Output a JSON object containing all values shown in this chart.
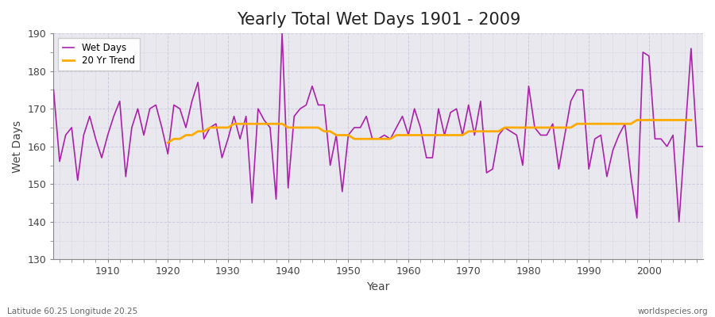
{
  "title": "Yearly Total Wet Days 1901 - 2009",
  "xlabel": "Year",
  "ylabel": "Wet Days",
  "bottom_left_label": "Latitude 60.25 Longitude 20.25",
  "bottom_right_label": "worldspecies.org",
  "xlim": [
    1901,
    2009
  ],
  "ylim": [
    130,
    190
  ],
  "yticks": [
    130,
    140,
    150,
    160,
    170,
    180,
    190
  ],
  "xticks": [
    1910,
    1920,
    1930,
    1940,
    1950,
    1960,
    1970,
    1980,
    1990,
    2000
  ],
  "line_color": "#aa22aa",
  "trend_color": "#ffaa00",
  "background_color": "#e8e8ee",
  "fig_background_color": "#ffffff",
  "grid_color": "#ccccdd",
  "legend_labels": [
    "Wet Days",
    "20 Yr Trend"
  ],
  "years": [
    1901,
    1902,
    1903,
    1904,
    1905,
    1906,
    1907,
    1908,
    1909,
    1910,
    1911,
    1912,
    1913,
    1914,
    1915,
    1916,
    1917,
    1918,
    1919,
    1920,
    1921,
    1922,
    1923,
    1924,
    1925,
    1926,
    1927,
    1928,
    1929,
    1930,
    1931,
    1932,
    1933,
    1934,
    1935,
    1936,
    1937,
    1938,
    1939,
    1940,
    1941,
    1942,
    1943,
    1944,
    1945,
    1946,
    1947,
    1948,
    1949,
    1950,
    1951,
    1952,
    1953,
    1954,
    1955,
    1956,
    1957,
    1958,
    1959,
    1960,
    1961,
    1962,
    1963,
    1964,
    1965,
    1966,
    1967,
    1968,
    1969,
    1970,
    1971,
    1972,
    1973,
    1974,
    1975,
    1976,
    1977,
    1978,
    1979,
    1980,
    1981,
    1982,
    1983,
    1984,
    1985,
    1986,
    1987,
    1988,
    1989,
    1990,
    1991,
    1992,
    1993,
    1994,
    1995,
    1996,
    1997,
    1998,
    1999,
    2000,
    2001,
    2002,
    2003,
    2004,
    2005,
    2006,
    2007,
    2008,
    2009
  ],
  "wet_days": [
    175,
    156,
    163,
    165,
    151,
    163,
    168,
    162,
    157,
    163,
    168,
    172,
    152,
    165,
    170,
    163,
    170,
    171,
    165,
    158,
    171,
    170,
    165,
    172,
    177,
    162,
    165,
    166,
    157,
    162,
    168,
    162,
    168,
    145,
    170,
    167,
    165,
    146,
    190,
    149,
    168,
    170,
    171,
    176,
    171,
    171,
    155,
    163,
    148,
    163,
    165,
    165,
    168,
    162,
    162,
    163,
    162,
    165,
    168,
    163,
    170,
    165,
    157,
    157,
    170,
    163,
    169,
    170,
    163,
    171,
    163,
    172,
    153,
    154,
    163,
    165,
    164,
    163,
    155,
    176,
    165,
    163,
    163,
    166,
    154,
    163,
    172,
    175,
    175,
    154,
    162,
    163,
    152,
    159,
    163,
    166,
    152,
    141,
    185,
    184,
    162,
    162,
    160,
    163,
    140,
    163,
    186,
    160,
    160
  ],
  "trend": [
    null,
    null,
    null,
    null,
    null,
    null,
    null,
    null,
    null,
    null,
    null,
    null,
    null,
    null,
    null,
    null,
    null,
    null,
    null,
    161,
    162,
    162,
    163,
    163,
    164,
    164,
    165,
    165,
    165,
    165,
    166,
    166,
    166,
    166,
    166,
    166,
    166,
    166,
    166,
    165,
    165,
    165,
    165,
    165,
    165,
    164,
    164,
    163,
    163,
    163,
    162,
    162,
    162,
    162,
    162,
    162,
    162,
    163,
    163,
    163,
    163,
    163,
    163,
    163,
    163,
    163,
    163,
    163,
    163,
    164,
    164,
    164,
    164,
    164,
    164,
    165,
    165,
    165,
    165,
    165,
    165,
    165,
    165,
    165,
    165,
    165,
    165,
    166,
    166,
    166,
    166,
    166,
    166,
    166,
    166,
    166,
    166,
    167,
    167,
    167,
    167,
    167,
    167,
    167,
    167,
    167,
    167
  ]
}
